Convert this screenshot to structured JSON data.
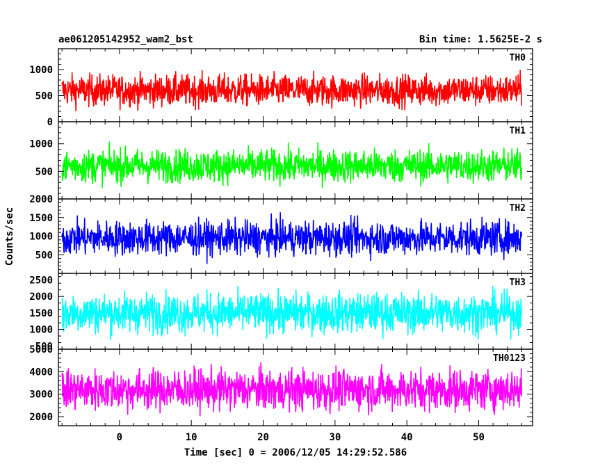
{
  "header": {
    "left_title": "ae061205142952_wam2_bst",
    "right_title": "Bin time: 1.5625E-2 s"
  },
  "chart_data": {
    "type": "line",
    "xlabel": "Time [sec] 0 = 2006/12/05 14:29:52.586",
    "ylabel": "Counts/sec",
    "xlim": [
      -8.5,
      57.5
    ],
    "x_ticks": [
      0,
      10,
      20,
      30,
      40,
      50
    ],
    "data_x_range": [
      -8,
      56
    ],
    "panels": [
      {
        "name": "TH0",
        "color": "#ff0000",
        "ylim": [
          0,
          1400
        ],
        "y_ticks": [
          0,
          500,
          1000
        ],
        "mean": 600,
        "noise_std": 150,
        "low": 80,
        "high": 1400
      },
      {
        "name": "TH1",
        "color": "#00ff00",
        "ylim": [
          0,
          1400
        ],
        "y_ticks": [
          500,
          1000
        ],
        "mean": 600,
        "noise_std": 150,
        "low": 60,
        "high": 1330
      },
      {
        "name": "TH2",
        "color": "#0000ff",
        "ylim": [
          0,
          2000
        ],
        "y_ticks": [
          500,
          1000,
          1500,
          2000
        ],
        "mean": 950,
        "noise_std": 230,
        "low": 60,
        "high": 2000
      },
      {
        "name": "TH3",
        "color": "#00ffff",
        "ylim": [
          400,
          2700
        ],
        "y_ticks": [
          500,
          1000,
          1500,
          2000,
          2500
        ],
        "mean": 1500,
        "noise_std": 300,
        "low": 500,
        "high": 2700
      },
      {
        "name": "TH0123",
        "color": "#ff00ff",
        "ylim": [
          1600,
          5000
        ],
        "y_ticks": [
          2000,
          3000,
          4000,
          5000
        ],
        "mean": 3200,
        "noise_std": 450,
        "low": 1600,
        "high": 4900
      }
    ]
  }
}
